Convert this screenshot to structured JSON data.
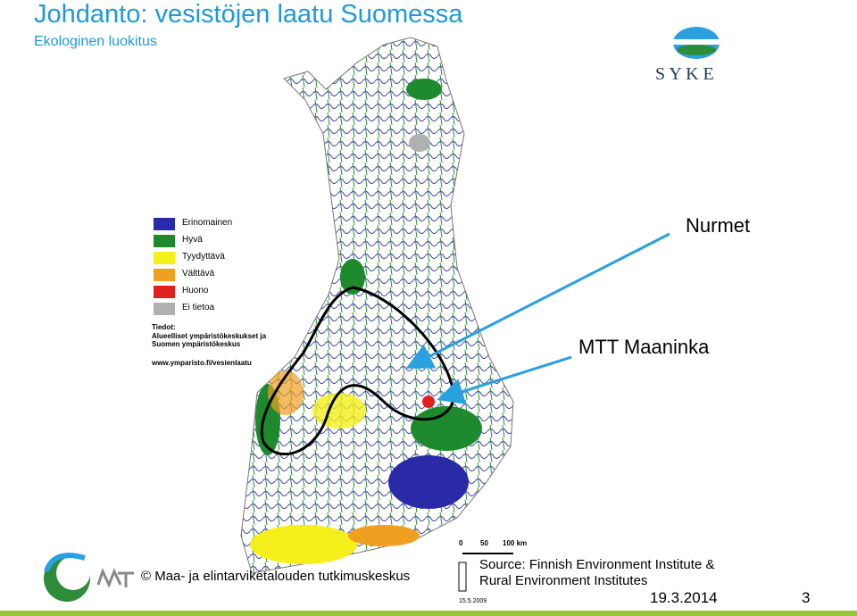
{
  "header": {
    "title": "Johdanto: vesistöjen laatu Suomessa",
    "subtitle": "Ekologinen luokitus"
  },
  "logo": {
    "text": "S Y K E"
  },
  "map": {
    "legend": [
      "Erinomainen",
      "Hyvä",
      "Tyydyttävä",
      "Välttävä",
      "Huono",
      "Ei tietoa"
    ],
    "info_heading": "Tiedot:",
    "info_lines": [
      "Alueelliset ympäristökeskukset ja",
      "Suomen ympäristökeskus"
    ],
    "url": "www.ymparisto.fi/vesienlaatu",
    "scale": [
      "0",
      "50",
      "100 km"
    ],
    "map_date": "15.5.2009"
  },
  "annotations": {
    "label_1": "Nurmet",
    "label_2": "MTT Maaninka"
  },
  "footer": {
    "copyright": "© Maa- ja elintarviketalouden tutkimuskeskus",
    "source_lines": [
      "Source: Finnish Environment Institute &",
      "Rural Environment Institutes"
    ],
    "date": "19.3.2014",
    "page": "3"
  }
}
